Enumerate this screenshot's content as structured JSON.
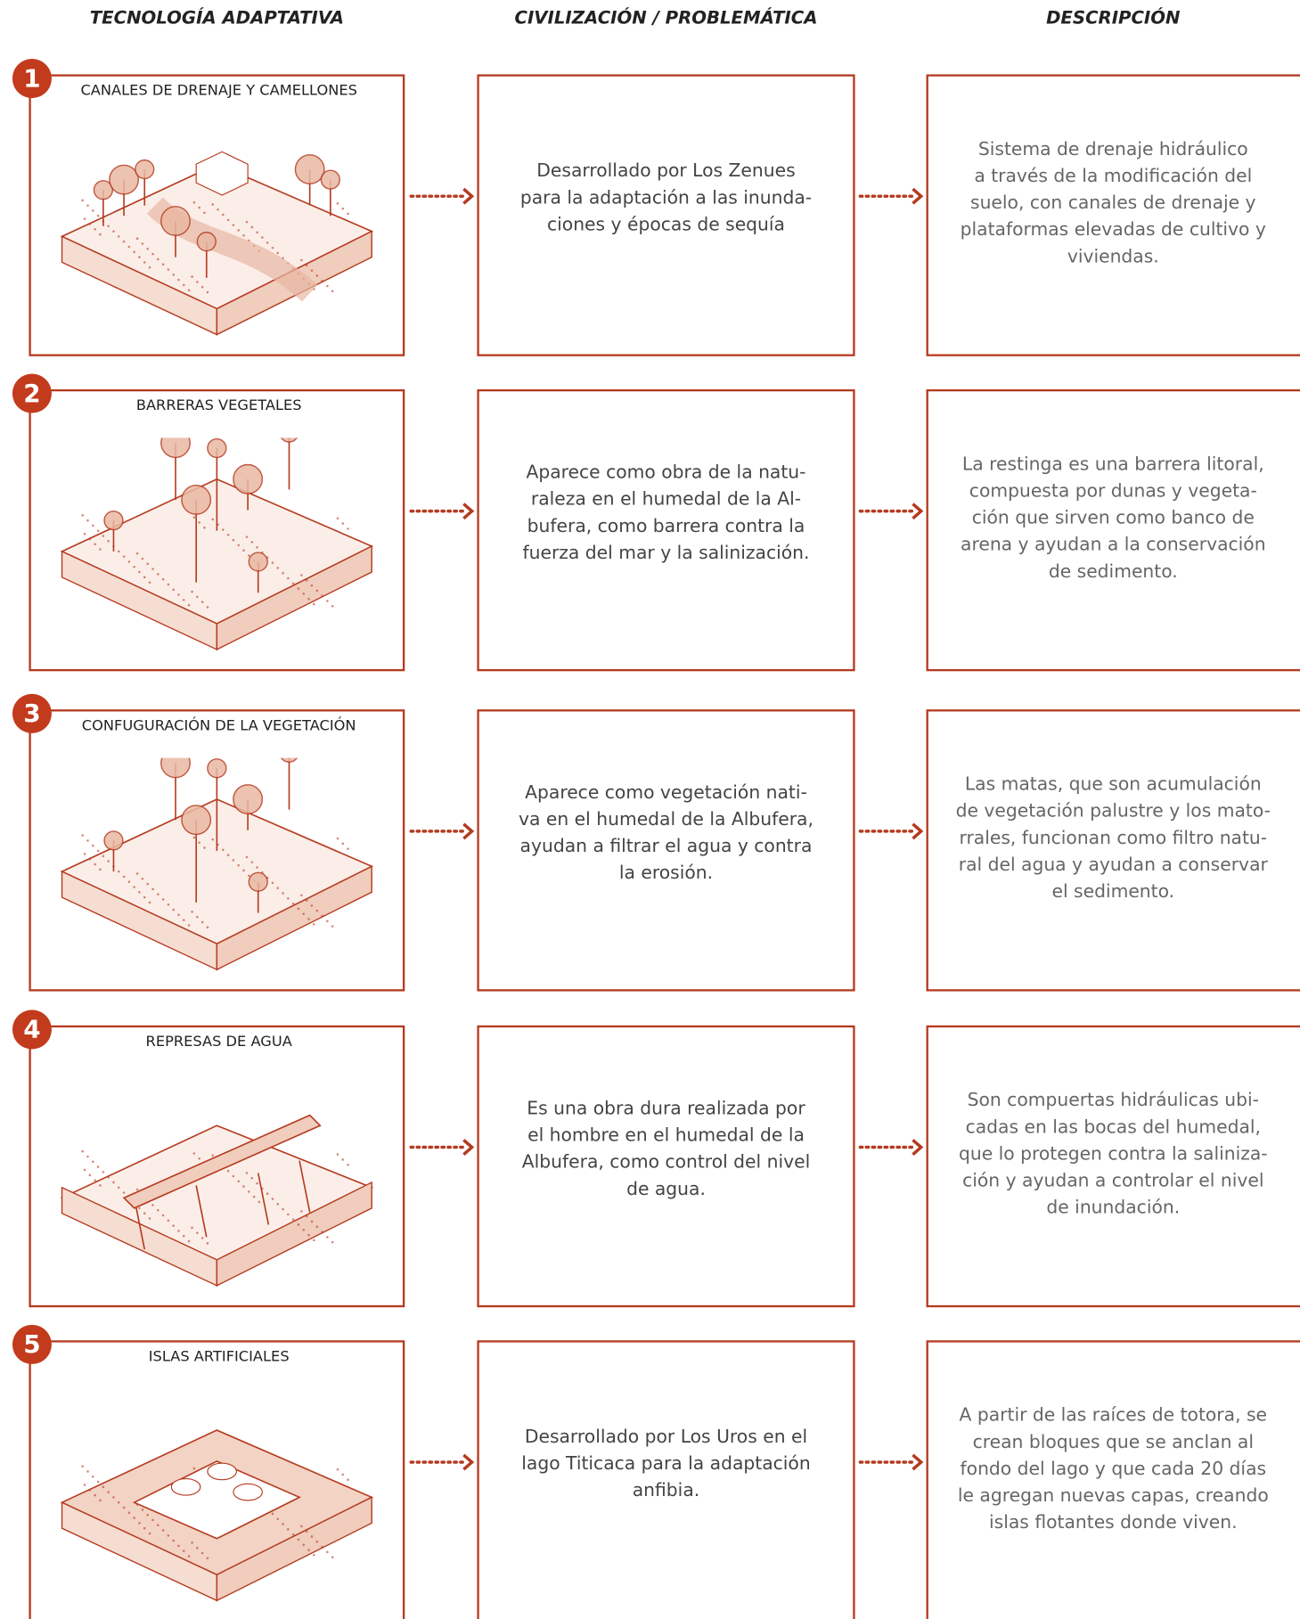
{
  "header": {
    "columns": [
      "TECNOLOGÍA ADAPTATIVA",
      "CIVILIZACIÓN / PROBLEMÁTICA",
      "DESCRIPCIÓN"
    ]
  },
  "rows": [
    {
      "number": "1",
      "title": "CANALES DE DRENAJE Y CAMELLONES",
      "civilization": [
        "Desarrollado por Los Zenues",
        "para la adaptación a las inunda-",
        "ciones y épocas de sequía"
      ],
      "description": [
        "Sistema de drenaje hidráulico",
        "a través de la modificación del",
        "suelo, con canales de drenaje y",
        "plataformas elevadas de cultivo y",
        "viviendas."
      ]
    },
    {
      "number": "2",
      "title": "BARRERAS VEGETALES",
      "civilization": [
        "Aparece como obra de la natu-",
        "raleza en el humedal de la Al-",
        "bufera, como barrera contra la",
        "fuerza del mar y la salinización."
      ],
      "description": [
        "La restinga es una barrera litoral,",
        "compuesta por dunas y vegeta-",
        "ción que sirven como banco de",
        "arena y ayudan a la conservación",
        "de sedimento."
      ]
    },
    {
      "number": "3",
      "title": "CONFUGURACIÓN DE LA VEGETACIÓN",
      "civilization": [
        "Aparece como vegetación nati-",
        "va en el humedal de la Albufera,",
        "ayudan a filtrar el agua y contra",
        "la erosión."
      ],
      "description": [
        "Las matas, que son acumulación",
        "de vegetación palustre y los mato-",
        "rrales, funcionan como filtro natu-",
        "ral del agua y ayudan a conservar",
        "el sedimento."
      ]
    },
    {
      "number": "4",
      "title": "REPRESAS DE AGUA",
      "civilization": [
        "Es una obra dura realizada por",
        "el hombre en el humedal de la",
        "Albufera, como control del nivel",
        "de agua."
      ],
      "description": [
        "Son compuertas hidráulicas ubi-",
        "cadas en las bocas del humedal,",
        "que lo protegen contra la saliniza-",
        "ción y ayudan a controlar el nivel",
        "de inundación."
      ]
    },
    {
      "number": "5",
      "title": "ISLAS ARTIFICIALES",
      "civilization": [
        "Desarrollado por Los Uros en el",
        "lago Titicaca para la adaptación",
        "anfibia."
      ],
      "description": [
        "A partir de las raíces de totora, se",
        "crean bloques que se anclan al",
        "fondo del lago y que cada 20 días",
        "le agregan nuevas capas, creando",
        "islas flotantes donde viven."
      ]
    }
  ]
}
